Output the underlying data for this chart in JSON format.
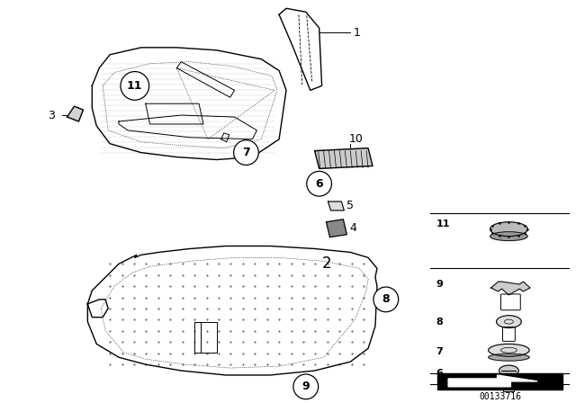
{
  "background_color": "#ffffff",
  "image_id": "00133716",
  "lw": 0.9
}
